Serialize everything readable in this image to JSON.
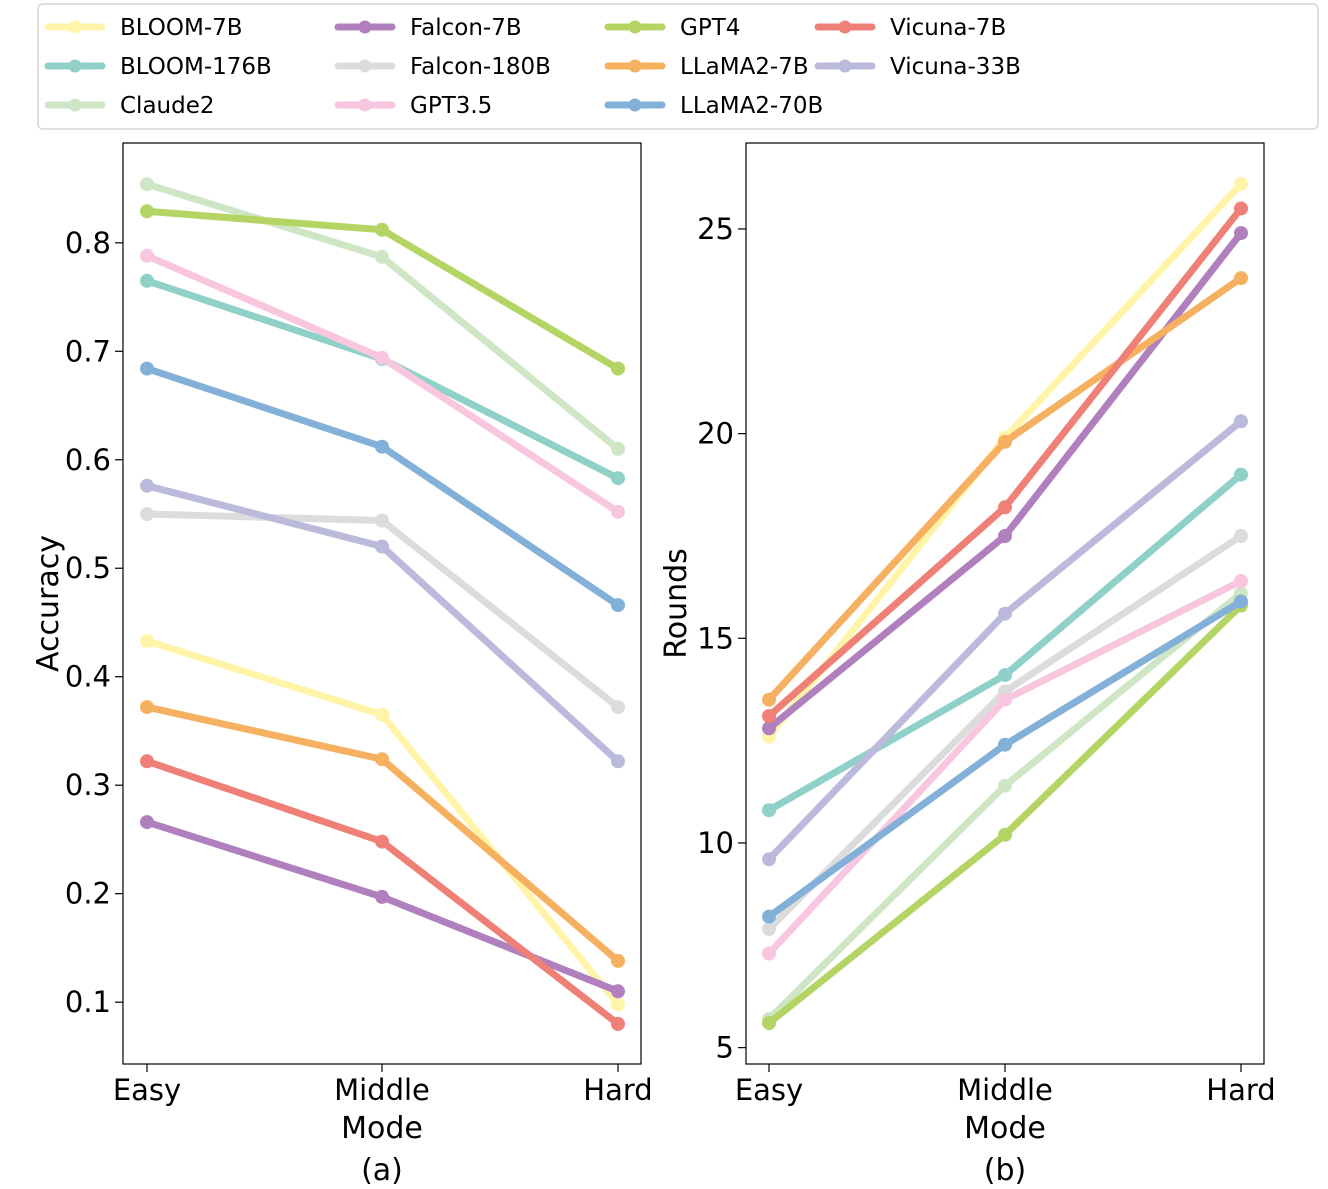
{
  "legend": {
    "position": "top",
    "entries": [
      {
        "name": "BLOOM-7B",
        "color": "#fff4a8"
      },
      {
        "name": "BLOOM-176B",
        "color": "#8fd0c8"
      },
      {
        "name": "Claude2",
        "color": "#cfe6c6"
      },
      {
        "name": "Falcon-7B",
        "color": "#b07fbe"
      },
      {
        "name": "Falcon-180B",
        "color": "#dcdcdc"
      },
      {
        "name": "GPT3.5",
        "color": "#f8c6de"
      },
      {
        "name": "GPT4",
        "color": "#b4d464"
      },
      {
        "name": "LLaMA2-7B",
        "color": "#f5b060"
      },
      {
        "name": "LLaMA2-70B",
        "color": "#82b0d8"
      },
      {
        "name": "Vicuna-7B",
        "color": "#ef8078"
      },
      {
        "name": "Vicuna-33B",
        "color": "#bcbadc"
      }
    ]
  },
  "chart_data": [
    {
      "type": "line",
      "caption": "(a)",
      "xlabel": "Mode",
      "ylabel": "Accuracy",
      "categories": [
        "Easy",
        "Middle",
        "Hard"
      ],
      "yticks": [
        "0.1",
        "0.2",
        "0.3",
        "0.4",
        "0.5",
        "0.6",
        "0.7",
        "0.8"
      ],
      "ylim": [
        0.043,
        0.892
      ],
      "grid": false,
      "series": [
        {
          "name": "BLOOM-7B",
          "values": [
            0.433,
            0.365,
            0.098
          ]
        },
        {
          "name": "BLOOM-176B",
          "values": [
            0.765,
            0.693,
            0.583
          ]
        },
        {
          "name": "Claude2",
          "values": [
            0.854,
            0.787,
            0.61
          ]
        },
        {
          "name": "Falcon-7B",
          "values": [
            0.266,
            0.197,
            0.11
          ]
        },
        {
          "name": "Falcon-180B",
          "values": [
            0.55,
            0.544,
            0.372
          ]
        },
        {
          "name": "GPT3.5",
          "values": [
            0.788,
            0.694,
            0.552
          ]
        },
        {
          "name": "GPT4",
          "values": [
            0.829,
            0.812,
            0.684
          ]
        },
        {
          "name": "LLaMA2-7B",
          "values": [
            0.372,
            0.324,
            0.138
          ]
        },
        {
          "name": "LLaMA2-70B",
          "values": [
            0.684,
            0.612,
            0.466
          ]
        },
        {
          "name": "Vicuna-7B",
          "values": [
            0.322,
            0.248,
            0.08
          ]
        },
        {
          "name": "Vicuna-33B",
          "values": [
            0.576,
            0.52,
            0.322
          ]
        }
      ]
    },
    {
      "type": "line",
      "caption": "(b)",
      "xlabel": "Mode",
      "ylabel": "Rounds",
      "categories": [
        "Easy",
        "Middle",
        "Hard"
      ],
      "yticks": [
        "5",
        "10",
        "15",
        "20",
        "25"
      ],
      "ylim": [
        4.6,
        27.1
      ],
      "grid": false,
      "series": [
        {
          "name": "BLOOM-7B",
          "values": [
            12.6,
            19.9,
            26.1
          ]
        },
        {
          "name": "BLOOM-176B",
          "values": [
            10.8,
            14.1,
            19.0
          ]
        },
        {
          "name": "Claude2",
          "values": [
            5.7,
            11.4,
            16.1
          ]
        },
        {
          "name": "Falcon-7B",
          "values": [
            12.8,
            17.5,
            24.9
          ]
        },
        {
          "name": "Falcon-180B",
          "values": [
            7.9,
            13.7,
            17.5
          ]
        },
        {
          "name": "GPT3.5",
          "values": [
            7.3,
            13.5,
            16.4
          ]
        },
        {
          "name": "GPT4",
          "values": [
            5.6,
            10.2,
            15.8
          ]
        },
        {
          "name": "LLaMA2-7B",
          "values": [
            13.5,
            19.8,
            23.8
          ]
        },
        {
          "name": "LLaMA2-70B",
          "values": [
            8.2,
            12.4,
            15.9
          ]
        },
        {
          "name": "Vicuna-7B",
          "values": [
            13.1,
            18.2,
            25.5
          ]
        },
        {
          "name": "Vicuna-33B",
          "values": [
            9.6,
            15.6,
            20.3
          ]
        }
      ]
    }
  ]
}
